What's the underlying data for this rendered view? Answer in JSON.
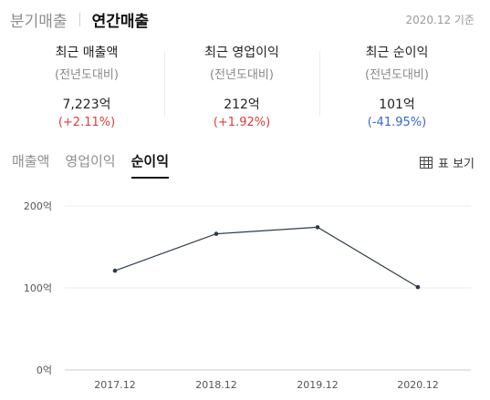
{
  "header": {
    "tabs": [
      {
        "label": "분기매출",
        "active": false
      },
      {
        "label": "연간매출",
        "active": true
      }
    ],
    "basis": "2020.12 기준"
  },
  "summary": [
    {
      "title": "최근 매출액",
      "subtitle": "(전년도대비)",
      "value": "7,223억",
      "change": "(+2.11%)",
      "direction": "up"
    },
    {
      "title": "최근 영업이익",
      "subtitle": "(전년도대비)",
      "value": "212억",
      "change": "(+1.92%)",
      "direction": "up"
    },
    {
      "title": "최근 순이익",
      "subtitle": "(전년도대비)",
      "value": "101억",
      "change": "(-41.95%)",
      "direction": "down"
    }
  ],
  "metric_tabs": [
    {
      "label": "매출액",
      "active": false
    },
    {
      "label": "영업이익",
      "active": false
    },
    {
      "label": "순이익",
      "active": true
    }
  ],
  "table_view_label": "표 보기",
  "colors": {
    "line": "#2b3a4a",
    "up": "#e03b3b",
    "down": "#3b64d8",
    "grid": "#eeeeee"
  },
  "chart_data": {
    "type": "line",
    "categories": [
      "2017.12",
      "2018.12",
      "2019.12",
      "2020.12"
    ],
    "series": [
      {
        "values": [
          121,
          166,
          174,
          101
        ]
      }
    ],
    "ylim": [
      0,
      200
    ],
    "yticks": [
      0,
      100,
      200
    ],
    "ytick_labels": [
      "0억",
      "100억",
      "200억"
    ],
    "grid": true
  }
}
